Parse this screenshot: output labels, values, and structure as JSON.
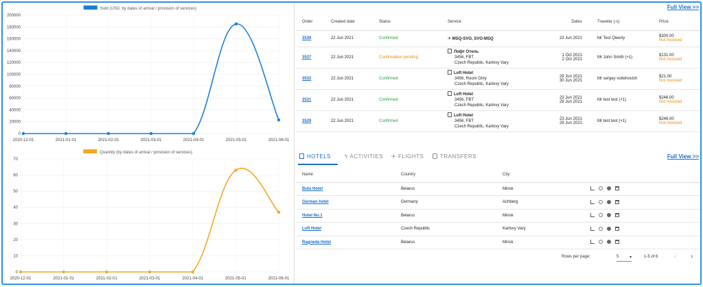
{
  "charts": {
    "sold_legend": "Sold (USD, by dates of arrival / provision of services)",
    "qty_legend": "Quantity (by dates of arrival / provision of services)",
    "colors": {
      "sold": "#1a7fd4",
      "qty": "#f6a623"
    }
  },
  "chart_data": [
    {
      "type": "line",
      "x": [
        "2020-12-01",
        "2021-01-01",
        "2021-02-01",
        "2021-03-01",
        "2021-04-01",
        "2021-05-01",
        "2021-06-01"
      ],
      "series": [
        {
          "name": "Sold (USD, by dates of arrival / provision of services)",
          "values": [
            0,
            0,
            0,
            0,
            0,
            185000,
            23000
          ]
        }
      ],
      "ylim": [
        0,
        200000
      ],
      "yticks": [
        "0",
        "20000",
        "40000",
        "60000",
        "80000",
        "100000",
        "120000",
        "140000",
        "160000",
        "180000",
        "200000"
      ],
      "legend": "top-center",
      "grid": true
    },
    {
      "type": "line",
      "x": [
        "2020-12-01",
        "2021-01-01",
        "2021-02-01",
        "2021-03-01",
        "2021-04-01",
        "2021-05-01",
        "2021-06-01"
      ],
      "series": [
        {
          "name": "Quantity (by dates of arrival / provision of services)",
          "values": [
            0,
            0,
            0,
            0,
            0,
            63,
            37
          ]
        }
      ],
      "ylim": [
        0,
        70
      ],
      "yticks": [
        "0",
        "10",
        "20",
        "30",
        "40",
        "50",
        "60",
        "70"
      ],
      "legend": "top-center",
      "grid": true
    }
  ],
  "orders": {
    "full_view": "Full View >>",
    "headers": {
      "order": "Order",
      "created": "Created date",
      "status": "Status",
      "service": "Service",
      "dates": "Dates",
      "traveler": "Traveler (-s)",
      "price": "Price"
    },
    "rows": [
      {
        "order": "3539",
        "created": "22 Jun 2021",
        "status": "Confirmed",
        "svc": [
          "MSQ-SVO, SVO-MSQ"
        ],
        "dates": [
          "23 Jun 2021"
        ],
        "traveler": "Mr Test Qwerty",
        "price": "$300.00",
        "invoice": "Not Invoiced"
      },
      {
        "order": "3537",
        "created": "22 Jun 2021",
        "status": "Confirmation pending",
        "svc": [
          "Лофт Отель",
          "3456, FBT",
          "Czech Republic, Karlovy Vary"
        ],
        "dates": [
          "1 Oct 2021",
          "2 Oct 2021"
        ],
        "traveler": "Mr John Smith (+1)",
        "price": "$131.00",
        "invoice": "Not Invoiced"
      },
      {
        "order": "3532",
        "created": "22 Jun 2021",
        "status": "Confirmed",
        "svc": [
          "Loft Hotel",
          "3456, Room Only",
          "Czech Republic, Karlovy Vary"
        ],
        "dates": [
          "29 Jun 2021",
          "30 Jun 2021"
        ],
        "traveler": "Mr sergey voitehovich",
        "price": "$21.00",
        "invoice": "Not Invoiced"
      },
      {
        "order": "3531",
        "created": "22 Jun 2021",
        "status": "Confirmed",
        "svc": [
          "Loft Hotel",
          "3456, FBT",
          "Czech Republic, Karlovy Vary"
        ],
        "dates": [
          "23 Jun 2021",
          "29 Jun 2021"
        ],
        "traveler": "Mr test test (+1)",
        "price": "$246.00",
        "invoice": "Not Invoiced"
      },
      {
        "order": "3529",
        "created": "22 Jun 2021",
        "status": "Confirmed",
        "svc": [
          "Loft Hotel",
          "3456, FBT",
          "Czech Republic, Karlovy Vary"
        ],
        "dates": [
          "23 Jun 2021",
          "29 Jun 2021"
        ],
        "traveler": "Mr test test (+1)",
        "price": "$246.00",
        "invoice": "Not Invoiced"
      }
    ]
  },
  "tabs": {
    "hotels": "HOTELS",
    "activities": "ACTIVITIES",
    "flights": "FLIGHTS",
    "transfers": "TRANSFERS",
    "full_view": "Full View >>"
  },
  "hotels": {
    "headers": {
      "name": "Name",
      "country": "Country",
      "city": "City"
    },
    "rows": [
      {
        "name": "Buta Hotel",
        "country": "Belarus",
        "city": "Minsk"
      },
      {
        "name": "German hotel",
        "country": "Germany",
        "city": "Achberg"
      },
      {
        "name": "Hotel No.1",
        "country": "Belarus",
        "city": "Minsk"
      },
      {
        "name": "Loft Hotel",
        "country": "Czech Republic",
        "city": "Karlovy Vary"
      },
      {
        "name": "Ragneda Hotel",
        "country": "Belarus",
        "city": "Minsk"
      }
    ]
  },
  "pager": {
    "rows_label": "Rows per page:",
    "rows_value": "5",
    "range": "1-5 of 6"
  }
}
